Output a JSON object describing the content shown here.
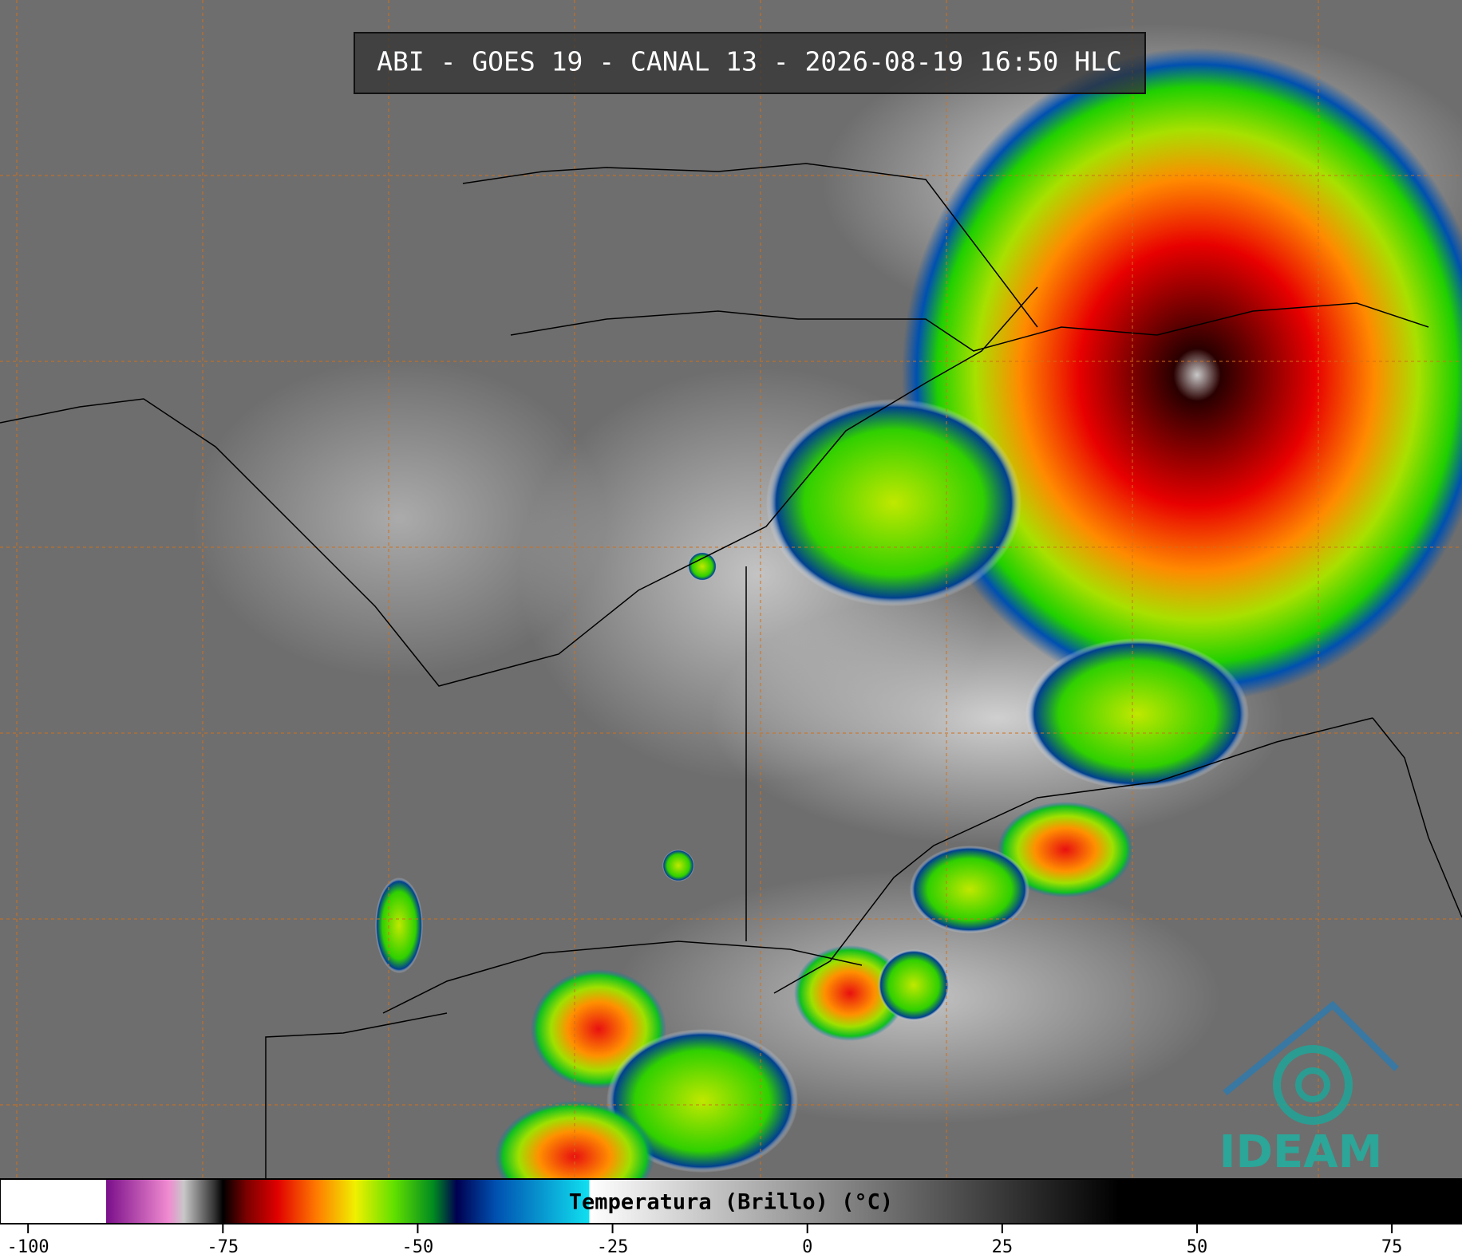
{
  "title": "ABI - GOES 19 - CANAL 13 - 2026-08-19 16:50 HLC",
  "logo": "IDEAM",
  "colorbar": {
    "label": "Temperatura (Brillo) (°C)",
    "lim": [
      -103.6,
      84
    ],
    "ticks": [
      -100,
      -75,
      -50,
      -25,
      0,
      25,
      50,
      75
    ],
    "colormap": [
      [
        -103.6,
        "#ffffff"
      ],
      [
        -90,
        "#ffffff"
      ],
      [
        -90,
        "#7a0f8a"
      ],
      [
        -82,
        "#f08ad0"
      ],
      [
        -80,
        "#c8c8c8"
      ],
      [
        -76,
        "#303030"
      ],
      [
        -75,
        "#000000"
      ],
      [
        -72,
        "#7a0000"
      ],
      [
        -68,
        "#e00000"
      ],
      [
        -63,
        "#ff7a00"
      ],
      [
        -58,
        "#f0f000"
      ],
      [
        -53,
        "#60e000"
      ],
      [
        -48,
        "#008a20"
      ],
      [
        -45,
        "#000050"
      ],
      [
        -40,
        "#0050b0"
      ],
      [
        -28,
        "#10e0f0"
      ],
      [
        -28,
        "#ffffff"
      ],
      [
        40,
        "#000000"
      ],
      [
        84,
        "#000000"
      ]
    ]
  }
}
